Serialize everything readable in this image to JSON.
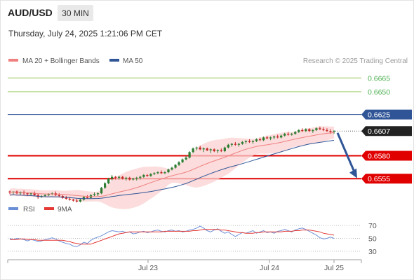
{
  "header": {
    "symbol": "AUD/USD",
    "timeframe": "30 MIN",
    "datetime": "Thursday, July 24, 2025 1:21:06 PM CET",
    "copyright": "Research © 2025 Trading Central"
  },
  "legend": {
    "ma20": "MA 20 + Bollinger Bands",
    "ma50": "MA 50",
    "rsi": "RSI",
    "ma9": "9MA"
  },
  "colors": {
    "candle_up": "#2e7d32",
    "candle_down": "#c62828",
    "ma20": "#f08080",
    "bollinger_fill": "#fbd0d0",
    "ma50": "#2f5597",
    "target_line": "#8bc34a",
    "target_label": "#4caf50",
    "pivot_line": "#2f5597",
    "support_line": "#e00000",
    "last_price_label": "#222222",
    "arrow": "#2f5597",
    "rsi_line": "#6b8fd6",
    "rsi_ma_line": "#e53935"
  },
  "chart_data": [
    {
      "type": "candlestick",
      "x_labels": [
        "Jul 23",
        "Jul 24",
        "Jul 25"
      ],
      "ylim": [
        0.6533,
        0.6679
      ],
      "levels": [
        {
          "value": 0.6665,
          "label": "0.6665",
          "kind": "resistance"
        },
        {
          "value": 0.665,
          "label": "0.6650",
          "kind": "resistance"
        },
        {
          "value": 0.6625,
          "label": "0.6625",
          "kind": "pivot"
        },
        {
          "value": 0.6607,
          "label": "0.6607",
          "kind": "last-price"
        },
        {
          "value": 0.658,
          "label": "0.6580",
          "kind": "support"
        },
        {
          "value": 0.6555,
          "label": "0.6555",
          "kind": "support"
        }
      ],
      "ohlc_approx": [
        [
          0.6541,
          0.6542,
          0.6538,
          0.654
        ],
        [
          0.654,
          0.6541,
          0.6538,
          0.6541
        ],
        [
          0.6541,
          0.6542,
          0.6538,
          0.6539
        ],
        [
          0.6539,
          0.6541,
          0.6537,
          0.654
        ],
        [
          0.654,
          0.6542,
          0.6537,
          0.6539
        ],
        [
          0.6539,
          0.654,
          0.6536,
          0.6538
        ],
        [
          0.6538,
          0.654,
          0.6537,
          0.6539
        ],
        [
          0.6539,
          0.6541,
          0.6536,
          0.6537
        ],
        [
          0.6537,
          0.6539,
          0.6533,
          0.6535
        ],
        [
          0.6535,
          0.6537,
          0.6534,
          0.6536
        ],
        [
          0.6536,
          0.6538,
          0.6535,
          0.6537
        ],
        [
          0.6537,
          0.6539,
          0.6536,
          0.6538
        ],
        [
          0.6538,
          0.654,
          0.6537,
          0.6539
        ],
        [
          0.6539,
          0.6541,
          0.6536,
          0.6537
        ],
        [
          0.6537,
          0.6539,
          0.6535,
          0.6536
        ],
        [
          0.6536,
          0.6537,
          0.6533,
          0.6534
        ],
        [
          0.6534,
          0.6536,
          0.6532,
          0.6533
        ],
        [
          0.6533,
          0.6535,
          0.6531,
          0.6532
        ],
        [
          0.6532,
          0.6533,
          0.653,
          0.6531
        ],
        [
          0.6531,
          0.6533,
          0.6529,
          0.653
        ],
        [
          0.653,
          0.6533,
          0.6529,
          0.6532
        ],
        [
          0.6532,
          0.6536,
          0.6531,
          0.6535
        ],
        [
          0.6535,
          0.6537,
          0.6533,
          0.6534
        ],
        [
          0.6534,
          0.6538,
          0.6533,
          0.6537
        ],
        [
          0.6537,
          0.654,
          0.6536,
          0.6538
        ],
        [
          0.6538,
          0.654,
          0.6536,
          0.6539
        ],
        [
          0.6539,
          0.6546,
          0.6538,
          0.6545
        ],
        [
          0.6545,
          0.6551,
          0.6544,
          0.655
        ],
        [
          0.655,
          0.6556,
          0.6549,
          0.6555
        ],
        [
          0.6555,
          0.6559,
          0.6553,
          0.6557
        ],
        [
          0.6557,
          0.6558,
          0.6554,
          0.6556
        ],
        [
          0.6556,
          0.6558,
          0.6554,
          0.6557
        ],
        [
          0.6557,
          0.6558,
          0.6554,
          0.6555
        ],
        [
          0.6555,
          0.6557,
          0.6553,
          0.6556
        ],
        [
          0.6556,
          0.6557,
          0.6553,
          0.6554
        ],
        [
          0.6554,
          0.6556,
          0.6553,
          0.6555
        ],
        [
          0.6555,
          0.6557,
          0.6553,
          0.6556
        ],
        [
          0.6556,
          0.6558,
          0.6554,
          0.6557
        ],
        [
          0.6557,
          0.656,
          0.6556,
          0.6559
        ],
        [
          0.6559,
          0.656,
          0.6557,
          0.6558
        ],
        [
          0.6558,
          0.6561,
          0.6557,
          0.656
        ],
        [
          0.656,
          0.6562,
          0.6559,
          0.6561
        ],
        [
          0.6561,
          0.6563,
          0.656,
          0.6562
        ],
        [
          0.6562,
          0.6564,
          0.656,
          0.6561
        ],
        [
          0.6561,
          0.6563,
          0.656,
          0.6562
        ],
        [
          0.6562,
          0.6566,
          0.6561,
          0.6565
        ],
        [
          0.6565,
          0.6568,
          0.6564,
          0.6567
        ],
        [
          0.6567,
          0.6571,
          0.6566,
          0.657
        ],
        [
          0.657,
          0.6574,
          0.6569,
          0.6573
        ],
        [
          0.6573,
          0.6577,
          0.6572,
          0.6576
        ],
        [
          0.6576,
          0.658,
          0.6575,
          0.6578
        ],
        [
          0.6578,
          0.6585,
          0.6577,
          0.6584
        ],
        [
          0.6584,
          0.6589,
          0.6583,
          0.6588
        ],
        [
          0.6588,
          0.659,
          0.6586,
          0.6589
        ],
        [
          0.6589,
          0.6591,
          0.6586,
          0.6587
        ],
        [
          0.6587,
          0.6589,
          0.6584,
          0.6588
        ],
        [
          0.6588,
          0.6589,
          0.6585,
          0.6586
        ],
        [
          0.6586,
          0.6588,
          0.6583,
          0.6587
        ],
        [
          0.6587,
          0.6588,
          0.6584,
          0.6585
        ],
        [
          0.6585,
          0.6587,
          0.6583,
          0.6586
        ],
        [
          0.6586,
          0.6588,
          0.6584,
          0.6585
        ],
        [
          0.6585,
          0.659,
          0.6584,
          0.6589
        ],
        [
          0.6589,
          0.6593,
          0.6588,
          0.6592
        ],
        [
          0.6592,
          0.6594,
          0.659,
          0.6593
        ],
        [
          0.6593,
          0.6595,
          0.6591,
          0.6592
        ],
        [
          0.6592,
          0.6594,
          0.659,
          0.6593
        ],
        [
          0.6593,
          0.6596,
          0.6592,
          0.6595
        ],
        [
          0.6595,
          0.6597,
          0.6593,
          0.6596
        ],
        [
          0.6596,
          0.6598,
          0.6594,
          0.6595
        ],
        [
          0.6595,
          0.6597,
          0.6593,
          0.6596
        ],
        [
          0.6596,
          0.6599,
          0.6595,
          0.6598
        ],
        [
          0.6598,
          0.66,
          0.6596,
          0.6597
        ],
        [
          0.6597,
          0.6601,
          0.6596,
          0.66
        ],
        [
          0.66,
          0.6602,
          0.6598,
          0.6599
        ],
        [
          0.6599,
          0.6601,
          0.6597,
          0.66
        ],
        [
          0.66,
          0.6602,
          0.6598,
          0.6601
        ],
        [
          0.6601,
          0.6603,
          0.6599,
          0.66
        ],
        [
          0.66,
          0.6603,
          0.6599,
          0.6602
        ],
        [
          0.6602,
          0.6605,
          0.6601,
          0.6604
        ],
        [
          0.6604,
          0.6606,
          0.6602,
          0.6603
        ],
        [
          0.6603,
          0.6605,
          0.6602,
          0.6604
        ],
        [
          0.6604,
          0.6607,
          0.6603,
          0.6606
        ],
        [
          0.6606,
          0.6609,
          0.6605,
          0.6608
        ],
        [
          0.6608,
          0.661,
          0.6606,
          0.6607
        ],
        [
          0.6607,
          0.661,
          0.6606,
          0.6609
        ],
        [
          0.6609,
          0.661,
          0.6606,
          0.6607
        ],
        [
          0.6607,
          0.6609,
          0.6605,
          0.6608
        ],
        [
          0.6608,
          0.6611,
          0.6607,
          0.661
        ],
        [
          0.661,
          0.6612,
          0.6608,
          0.6609
        ],
        [
          0.6609,
          0.6611,
          0.6607,
          0.6608
        ],
        [
          0.6608,
          0.661,
          0.6606,
          0.6607
        ],
        [
          0.6607,
          0.6609,
          0.6604,
          0.6606
        ],
        [
          0.6606,
          0.6608,
          0.6604,
          0.6607
        ]
      ]
    },
    {
      "type": "line",
      "series_names": [
        "RSI",
        "9MA"
      ],
      "ylim": [
        20,
        80
      ],
      "ticks": [
        70,
        50,
        30
      ],
      "x_labels": [
        "Jul 23",
        "Jul 24",
        "Jul 25"
      ],
      "rsi_values": [
        50,
        48,
        50,
        49,
        48,
        46,
        48,
        47,
        45,
        46,
        48,
        49,
        51,
        49,
        46,
        44,
        42,
        41,
        38,
        37,
        40,
        44,
        42,
        47,
        50,
        52,
        54,
        57,
        60,
        62,
        61,
        60,
        61,
        59,
        60,
        57,
        58,
        60,
        61,
        59,
        60,
        62,
        63,
        61,
        60,
        62,
        63,
        61,
        62,
        60,
        61,
        63,
        64,
        66,
        69,
        66,
        62,
        60,
        63,
        65,
        61,
        58,
        60,
        56,
        53,
        56,
        59,
        58,
        60,
        62,
        58,
        60,
        62,
        59,
        60,
        58,
        61,
        62,
        64,
        62,
        60,
        63,
        65,
        66,
        64,
        61,
        58,
        55,
        51,
        49,
        50,
        52,
        50
      ],
      "ma9_values": [
        48,
        48,
        48,
        49,
        49,
        48,
        48,
        48,
        47,
        47,
        47,
        47,
        47,
        47,
        47,
        47,
        46,
        45,
        43,
        42,
        41,
        41,
        41,
        41,
        43,
        45,
        47,
        49,
        51,
        53,
        55,
        57,
        58,
        59,
        60,
        60,
        60,
        60,
        60,
        60,
        60,
        60,
        60,
        60,
        61,
        61,
        61,
        61,
        61,
        61,
        61,
        61,
        62,
        62,
        63,
        64,
        64,
        64,
        64,
        64,
        63,
        63,
        62,
        61,
        60,
        59,
        59,
        58,
        58,
        58,
        59,
        59,
        60,
        60,
        60,
        60,
        60,
        60,
        61,
        61,
        61,
        62,
        62,
        63,
        63,
        63,
        62,
        61,
        60,
        58,
        57,
        56,
        55
      ]
    }
  ]
}
